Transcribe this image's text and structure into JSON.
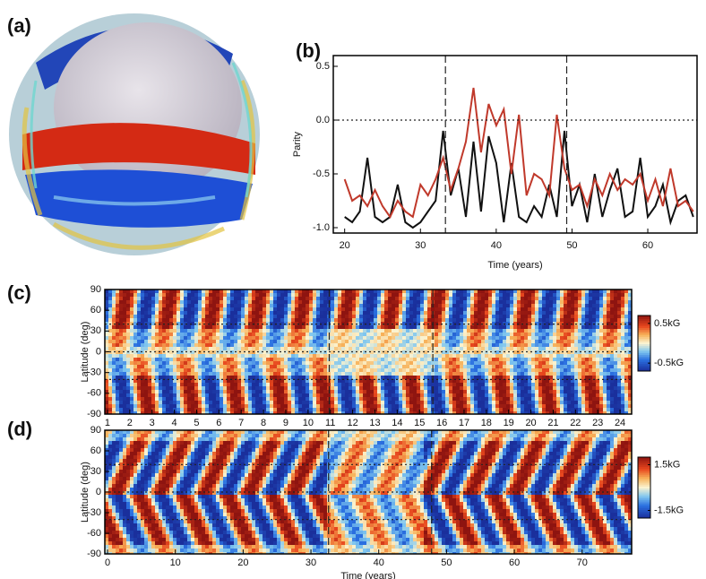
{
  "panel_labels": [
    "(a)",
    "(b)",
    "(c)",
    "(d)"
  ],
  "chart_data": [
    {
      "type": "line",
      "xlabel": "Time (years)",
      "ylabel": "Parity",
      "x": [
        20,
        21,
        22,
        23,
        24,
        25,
        26,
        27,
        28,
        29,
        30,
        31,
        32,
        33,
        34,
        35,
        36,
        37,
        38,
        39,
        40,
        41,
        42,
        43,
        44,
        45,
        46,
        47,
        48,
        49,
        50,
        51,
        52,
        53,
        54,
        55,
        56,
        57,
        58,
        59,
        60,
        61,
        62,
        63,
        64,
        65,
        66
      ],
      "series": [
        {
          "color": "#111111",
          "values": [
            -0.9,
            -0.95,
            -0.85,
            -0.35,
            -0.9,
            -0.95,
            -0.9,
            -0.6,
            -0.95,
            -1.0,
            -0.95,
            -0.85,
            -0.75,
            -0.1,
            -0.7,
            -0.45,
            -0.9,
            -0.2,
            -0.85,
            -0.15,
            -0.4,
            -0.95,
            -0.4,
            -0.9,
            -0.95,
            -0.8,
            -0.9,
            -0.6,
            -0.9,
            -0.1,
            -0.8,
            -0.6,
            -0.95,
            -0.5,
            -0.9,
            -0.65,
            -0.45,
            -0.9,
            -0.85,
            -0.35,
            -0.9,
            -0.8,
            -0.6,
            -0.95,
            -0.75,
            -0.7,
            -0.9
          ]
        },
        {
          "color": "#c0392b",
          "values": [
            -0.55,
            -0.75,
            -0.7,
            -0.8,
            -0.65,
            -0.8,
            -0.9,
            -0.75,
            -0.85,
            -0.9,
            -0.6,
            -0.7,
            -0.55,
            -0.35,
            -0.65,
            -0.45,
            -0.2,
            0.3,
            -0.3,
            0.15,
            -0.05,
            0.1,
            -0.5,
            0.05,
            -0.7,
            -0.5,
            -0.55,
            -0.7,
            0.05,
            -0.45,
            -0.65,
            -0.6,
            -0.8,
            -0.55,
            -0.7,
            -0.5,
            -0.65,
            -0.55,
            -0.6,
            -0.5,
            -0.75,
            -0.55,
            -0.8,
            -0.45,
            -0.8,
            -0.75,
            -0.85
          ]
        }
      ],
      "xlim": [
        18.5,
        66.5
      ],
      "xticks": [
        20,
        30,
        40,
        50,
        60
      ],
      "ylim": [
        -1.05,
        0.6
      ],
      "yticks": [
        0.5,
        {
          "value": 0,
          "label": "0.0"
        },
        -0.5,
        {
          "value": -1,
          "label": "-1.0"
        }
      ],
      "vlines": [
        33.3,
        49.3
      ],
      "hlines": [
        0
      ]
    },
    {
      "type": "heatmap",
      "ylabel": "Latitude (deg)",
      "xlim": [
        0.88,
        24.52
      ],
      "xticks": [
        1,
        2,
        3,
        4,
        5,
        6,
        7,
        8,
        9,
        10,
        11,
        12,
        13,
        14,
        15,
        16,
        17,
        18,
        19,
        20,
        21,
        22,
        23,
        24
      ],
      "ylim": [
        -90,
        90
      ],
      "yticks": [
        90,
        60,
        30,
        0,
        -30,
        -60,
        -90
      ],
      "vlines": [
        10.95,
        15.6
      ],
      "hlines": [
        40,
        0,
        -40
      ],
      "colorbar": {
        "lim": [
          -0.7,
          0.7
        ],
        "ticks": [
          {
            "value": 0.5,
            "label": "0.5kG"
          },
          {
            "value": -0.5,
            "label": "-0.5kG"
          }
        ]
      }
    },
    {
      "type": "heatmap",
      "ylabel": "Latitude (deg)",
      "xlabel": "Time (years)",
      "xlim": [
        -0.4,
        77.3
      ],
      "xticks": [
        0,
        10,
        20,
        30,
        40,
        50,
        60,
        70
      ],
      "ylim": [
        -90,
        90
      ],
      "yticks": [
        90,
        60,
        30,
        0,
        -30,
        -60,
        -90
      ],
      "vlines": [
        32.6,
        47.8
      ],
      "hlines": [
        40,
        0,
        -40
      ],
      "colorbar": {
        "lim": [
          -2,
          2
        ],
        "ticks": [
          {
            "value": 1.5,
            "label": "1.5kG"
          },
          {
            "value": -1.5,
            "label": "-1.5kG"
          }
        ]
      }
    }
  ]
}
